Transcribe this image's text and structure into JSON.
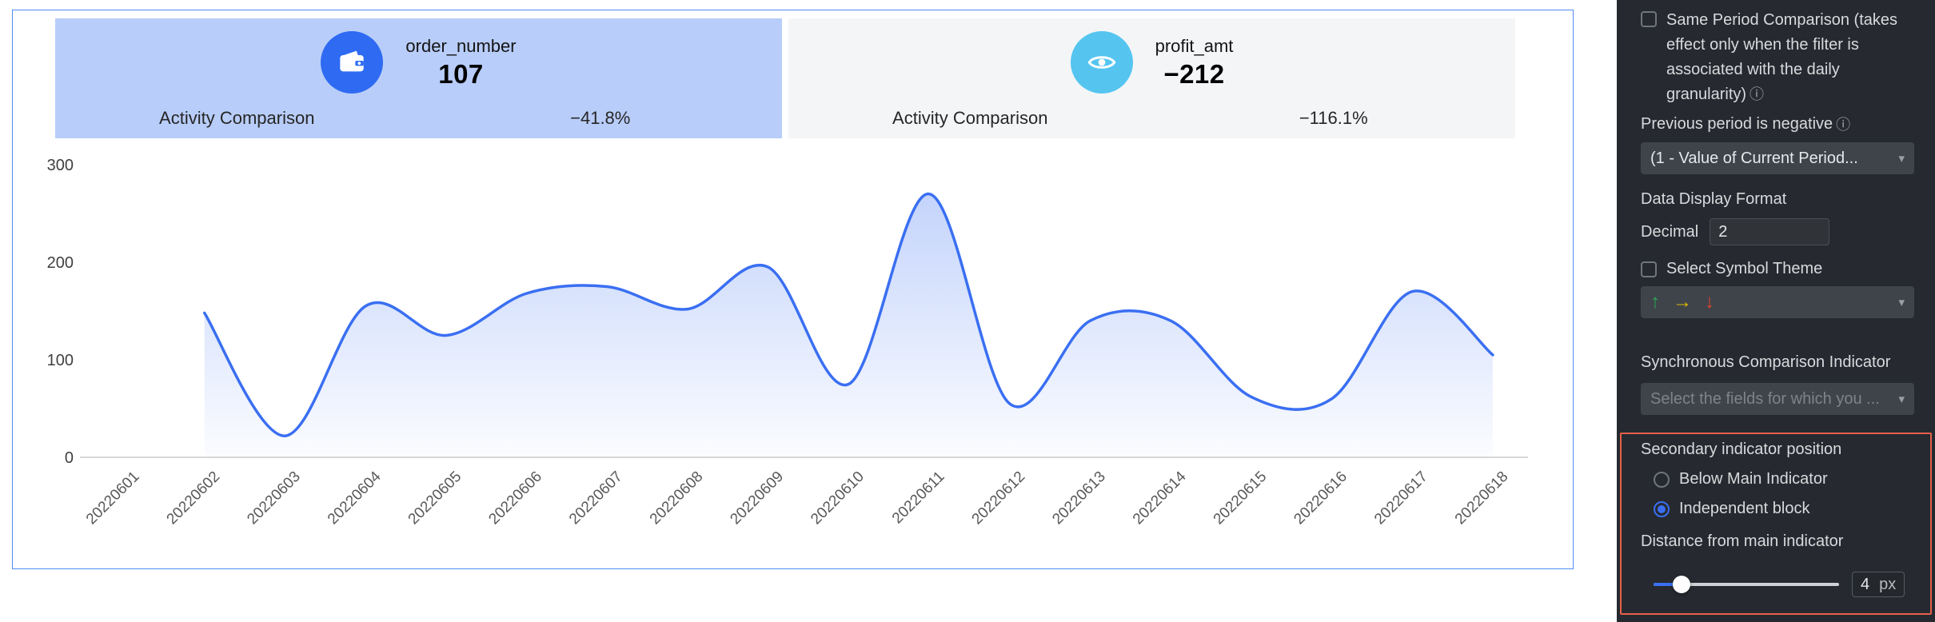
{
  "kpi_cards": [
    {
      "metric": "order_number",
      "value": "107",
      "comparison_label": "Activity Comparison",
      "comparison_value": "−41.8%",
      "icon": "wallet-icon",
      "icon_bg": "#2e6bf2",
      "card_bg": "#b8cdf9"
    },
    {
      "metric": "profit_amt",
      "value": "−212",
      "comparison_label": "Activity Comparison",
      "comparison_value": "−116.1%",
      "icon": "eye-icon",
      "icon_bg": "#55c5f0",
      "card_bg": "#f4f5f7"
    }
  ],
  "chart_data": {
    "type": "area",
    "title": "",
    "x": [
      "20220601",
      "20220602",
      "20220603",
      "20220604",
      "20220605",
      "20220606",
      "20220607",
      "20220608",
      "20220609",
      "20220610",
      "20220611",
      "20220612",
      "20220613",
      "20220614",
      "20220615",
      "20220616",
      "20220617",
      "20220618"
    ],
    "series": [
      {
        "name": "order_number",
        "values": [
          null,
          148,
          22,
          155,
          125,
          168,
          175,
          152,
          195,
          75,
          270,
          55,
          140,
          140,
          62,
          60,
          170,
          105
        ]
      }
    ],
    "xlabel": "",
    "ylabel": "",
    "ylim": [
      0,
      300
    ],
    "yticks": [
      0,
      100,
      200,
      300
    ],
    "grid": false,
    "legend": "none",
    "x_label_rotation": 45,
    "line_color": "#3a6ff2",
    "area_color": "#3a6ff2"
  },
  "settings": {
    "panel_bg": "#262a30",
    "same_period_label": "Same Period Comparison (takes effect only when the filter is associated with the daily granularity)",
    "same_period_checked": false,
    "previous_period_label": "Previous period is negative",
    "previous_period_value": "(1 - Value of Current Period...",
    "data_display_format_title": "Data Display Format",
    "decimal_label": "Decimal",
    "decimal_value": "2",
    "symbol_theme_label": "Select Symbol Theme",
    "symbol_theme_checked": false,
    "symbol_theme_arrows": [
      {
        "name": "arrow-up-icon",
        "glyph": "↑",
        "color": "#2aa757"
      },
      {
        "name": "arrow-right-icon",
        "glyph": "→",
        "color": "#e2b800"
      },
      {
        "name": "arrow-down-icon",
        "glyph": "↓",
        "color": "#e2442e"
      }
    ],
    "sync_title": "Synchronous Comparison Indicator",
    "sync_placeholder": "Select the fields for which you ...",
    "secondary": {
      "title": "Secondary indicator position",
      "highlight_color": "#e6604a",
      "options": [
        {
          "label": "Below Main Indicator",
          "selected": false
        },
        {
          "label": "Independent block",
          "selected": true
        }
      ],
      "distance_label": "Distance from main indicator",
      "distance_value": "4",
      "distance_unit": "px"
    }
  }
}
